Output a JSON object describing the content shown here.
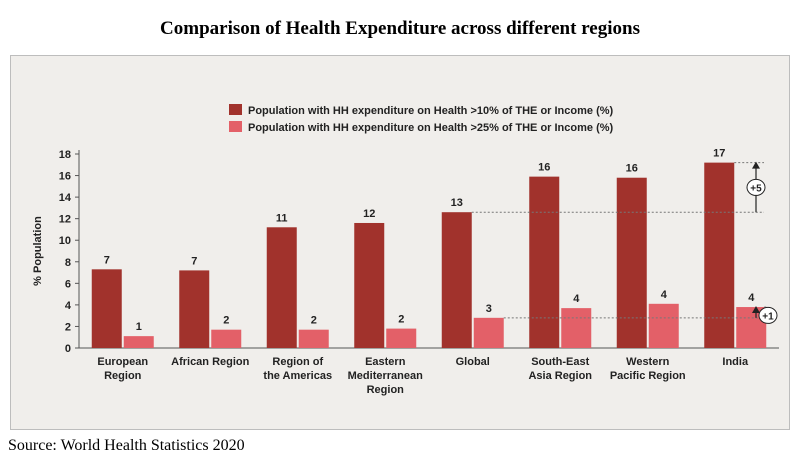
{
  "title": "Comparison of Health Expenditure across different regions",
  "source": "Source: World Health Statistics 2020",
  "colors": {
    "series1": "#a1322c",
    "series2": "#e36068"
  },
  "chart_data": {
    "type": "bar",
    "ylabel": "% Population",
    "ylim": [
      0,
      18
    ],
    "yticks": [
      0,
      2,
      4,
      6,
      8,
      10,
      12,
      14,
      16,
      18
    ],
    "grid": false,
    "legend_position": "top",
    "categories": [
      [
        "European",
        "Region"
      ],
      [
        "African Region"
      ],
      [
        "Region of",
        "the Americas"
      ],
      [
        "Eastern",
        "Mediterranean",
        "Region"
      ],
      [
        "Global"
      ],
      [
        "South-East",
        "Asia Region"
      ],
      [
        "Western",
        "Pacific Region"
      ],
      [
        "India"
      ]
    ],
    "series": [
      {
        "name": "Population with HH expenditure on Health >10% of THE or Income (%)",
        "values": [
          7.3,
          7.2,
          11.2,
          11.6,
          12.6,
          15.9,
          15.8,
          17.2
        ],
        "labels": [
          "7",
          "7",
          "11",
          "12",
          "13",
          "16",
          "16",
          "17"
        ]
      },
      {
        "name": "Population with HH expenditure on Health >25% of THE or Income (%)",
        "values": [
          1.1,
          1.7,
          1.7,
          1.8,
          2.8,
          3.7,
          4.1,
          3.8
        ],
        "labels": [
          "1",
          "2",
          "2",
          "2",
          "3",
          "4",
          "4",
          "4"
        ]
      }
    ],
    "annotations": [
      {
        "text": "+5",
        "from_category": "Global",
        "to_category": "India",
        "series": 0
      },
      {
        "text": "+1",
        "from_category": "Global",
        "to_category": "India",
        "series": 1
      }
    ]
  }
}
